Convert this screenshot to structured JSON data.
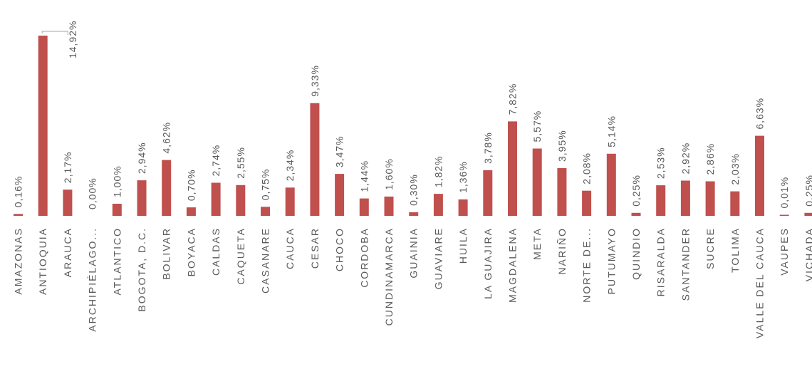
{
  "chart_data": {
    "type": "bar",
    "title": "",
    "xlabel": "",
    "ylabel": "",
    "ylim": [
      0,
      16
    ],
    "grid": false,
    "legend": "none",
    "bar_color": "#c0504d",
    "label_color": "#595959",
    "categories": [
      "AMAZONAS",
      "ANTIOQUIA",
      "ARAUCA",
      "ARCHIPIÉLAGO...",
      "ATLANTICO",
      "BOGOTA, D.C.",
      "BOLIVAR",
      "BOYACA",
      "CALDAS",
      "CAQUETA",
      "CASANARE",
      "CAUCA",
      "CESAR",
      "CHOCO",
      "CORDOBA",
      "CUNDINAMARCA",
      "GUAINIA",
      "GUAVIARE",
      "HUILA",
      "LA GUAJIRA",
      "MAGDALENA",
      "META",
      "NARIÑO",
      "NORTE DE...",
      "PUTUMAYO",
      "QUINDIO",
      "RISARALDA",
      "SANTANDER",
      "SUCRE",
      "TOLIMA",
      "VALLE DEL CAUCA",
      "VAUPES",
      "VICHADA"
    ],
    "values": [
      0.16,
      14.92,
      2.17,
      0.0,
      1.0,
      2.94,
      4.62,
      0.7,
      2.74,
      2.55,
      0.75,
      2.34,
      9.33,
      3.47,
      1.44,
      1.6,
      0.3,
      1.82,
      1.36,
      3.78,
      7.82,
      5.57,
      3.95,
      2.08,
      5.14,
      0.25,
      2.53,
      2.92,
      2.86,
      2.03,
      6.63,
      0.01,
      0.25
    ],
    "value_labels": [
      "0,16%",
      "14,92%",
      "2,17%",
      "0,00%",
      "1,00%",
      "2,94%",
      "4,62%",
      "0,70%",
      "2,74%",
      "2,55%",
      "0,75%",
      "2,34%",
      "9,33%",
      "3,47%",
      "1,44%",
      "1,60%",
      "0,30%",
      "1,82%",
      "1,36%",
      "3,78%",
      "7,82%",
      "5,57%",
      "3,95%",
      "2,08%",
      "5,14%",
      "0,25%",
      "2,53%",
      "2,92%",
      "2,86%",
      "2,03%",
      "6,63%",
      "0,01%",
      "0,25%"
    ]
  }
}
